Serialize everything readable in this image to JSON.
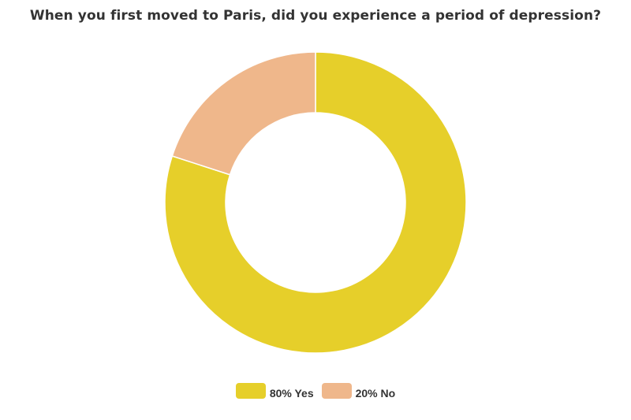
{
  "chart_data": {
    "type": "pie",
    "title": "When you first moved to Paris, did you experience a period of depression?",
    "categories": [
      "Yes",
      "No"
    ],
    "values": [
      80,
      20
    ],
    "unit": "%",
    "colors": [
      "#E6CF2A",
      "#EFB78B"
    ],
    "donut": true,
    "legend_position": "bottom",
    "legend": [
      {
        "label": "80% Yes",
        "color": "#E6CF2A"
      },
      {
        "label": "20% No",
        "color": "#EFB78B"
      }
    ]
  }
}
